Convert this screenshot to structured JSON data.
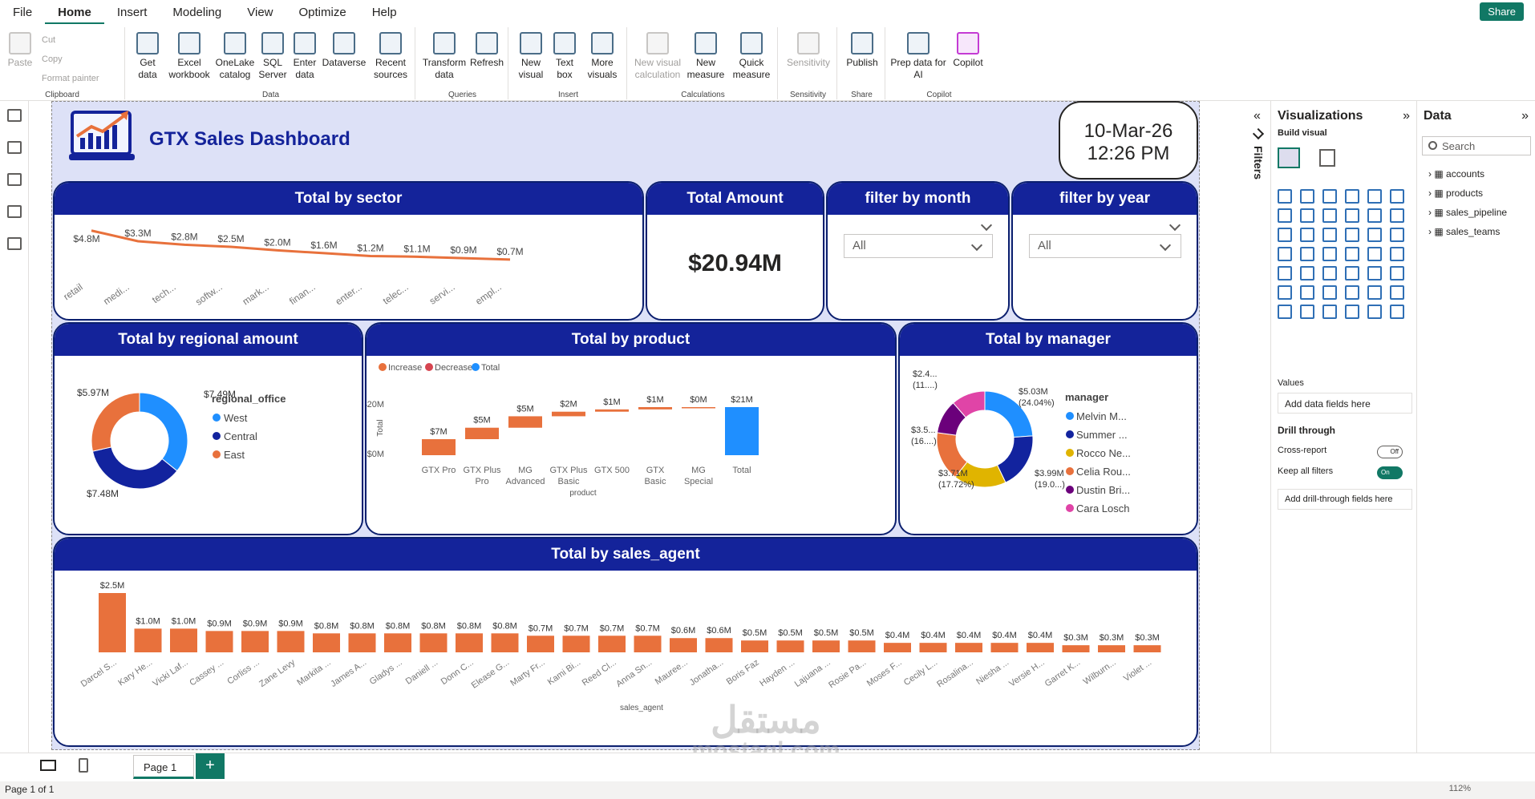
{
  "menu": [
    "File",
    "Home",
    "Insert",
    "Modeling",
    "View",
    "Optimize",
    "Help"
  ],
  "share": "Share",
  "ribbon": {
    "clipboard": {
      "paste": "Paste",
      "cut": "Cut",
      "copy": "Copy",
      "format_painter": "Format painter",
      "group": "Clipboard"
    },
    "data": {
      "get_data": "Get data",
      "excel": "Excel workbook",
      "onelake": "OneLake catalog",
      "sql": "SQL Server",
      "enter": "Enter data",
      "dataverse": "Dataverse",
      "recent": "Recent sources",
      "group": "Data"
    },
    "queries": {
      "transform": "Transform data",
      "refresh": "Refresh",
      "group": "Queries"
    },
    "insert": {
      "new_visual": "New visual",
      "text_box": "Text box",
      "more_visuals": "More visuals",
      "group": "Insert"
    },
    "calculations": {
      "new_visual_calc": "New visual calculation",
      "new_measure": "New measure",
      "quick_measure": "Quick measure",
      "group": "Calculations"
    },
    "sensitivity": {
      "label": "Sensitivity",
      "group": "Sensitivity"
    },
    "share": {
      "publish": "Publish",
      "group": "Share"
    },
    "copilot": {
      "prep": "Prep data for AI",
      "copilot": "Copilot",
      "group": "Copilot"
    }
  },
  "dashboard": {
    "title": "GTX Sales Dashboard",
    "date": "10-Mar-26",
    "time": "12:26 PM"
  },
  "cards": {
    "sector": "Total by sector",
    "amount": "Total Amount",
    "amount_value": "$20.94M",
    "month": "filter by month",
    "month_value": "All",
    "year": "filter by year",
    "year_value": "All",
    "regional": "Total by regional amount",
    "product": "Total by product",
    "manager": "Total by manager",
    "agent": "Total by sales_agent"
  },
  "chart_data": [
    {
      "type": "line",
      "title": "Total by sector",
      "categories": [
        "retail",
        "medi...",
        "tech...",
        "softw...",
        "mark...",
        "finan...",
        "enter...",
        "telec...",
        "servi...",
        "empl..."
      ],
      "values": [
        4.8,
        3.3,
        2.8,
        2.5,
        2.0,
        1.6,
        1.2,
        1.1,
        0.9,
        0.7
      ],
      "labels": [
        "$4.8M",
        "$3.3M",
        "$2.8M",
        "$2.5M",
        "$2.0M",
        "$1.6M",
        "$1.2M",
        "$1.1M",
        "$0.9M",
        "$0.7M"
      ],
      "color": "#e8713c"
    },
    {
      "type": "pie",
      "title": "Total by regional amount",
      "legend_title": "regional_office",
      "slices": [
        {
          "name": "West",
          "value": 7.49,
          "label": "$7.49M",
          "color": "#1f8fff"
        },
        {
          "name": "Central",
          "value": 7.48,
          "label": "$7.48M",
          "color": "#12239e"
        },
        {
          "name": "East",
          "value": 5.97,
          "label": "$5.97M",
          "color": "#e8713c"
        }
      ]
    },
    {
      "type": "bar",
      "title": "Total by product",
      "subtype": "waterfall",
      "legend": [
        {
          "name": "Increase",
          "color": "#e8713c"
        },
        {
          "name": "Decrease",
          "color": "#d64550"
        },
        {
          "name": "Total",
          "color": "#1f8fff"
        }
      ],
      "categories": [
        "GTX Pro",
        "GTX Plus Pro",
        "MG Advanced",
        "GTX Plus Basic",
        "GTX 500",
        "GTX Basic",
        "MG Special",
        "Total"
      ],
      "values": [
        7,
        5,
        5,
        2,
        1,
        1,
        0,
        21
      ],
      "labels": [
        "$7M",
        "$5M",
        "$5M",
        "$2M",
        "$1M",
        "$1M",
        "$0M",
        "$21M"
      ],
      "ylabel": "Total",
      "xlabel": "product",
      "yticks": [
        "$20M",
        "$0M"
      ]
    },
    {
      "type": "pie",
      "title": "Total by manager",
      "legend_title": "manager",
      "slices": [
        {
          "name": "Melvin M...",
          "value": 5.03,
          "label": "$5.03M",
          "pct": "(24.04%)",
          "color": "#1f8fff"
        },
        {
          "name": "Summer ...",
          "value": 3.99,
          "label": "$3.99M",
          "pct": "(19.0...)",
          "color": "#12239e"
        },
        {
          "name": "Rocco Ne...",
          "value": 3.71,
          "label": "$3.71M",
          "pct": "(17.72%)",
          "color": "#e0b400"
        },
        {
          "name": "Celia Rou...",
          "value": 3.5,
          "label": "$3.5...",
          "pct": "(16....)",
          "color": "#e8713c"
        },
        {
          "name": "Dustin Bri...",
          "value": 2.4,
          "label": "",
          "pct": "",
          "color": "#6b007b"
        },
        {
          "name": "Cara Losch",
          "value": 2.4,
          "label": "$2.4...",
          "pct": "(11....)",
          "color": "#e044a7"
        }
      ]
    },
    {
      "type": "bar",
      "title": "Total by sales_agent",
      "xlabel": "sales_agent",
      "categories": [
        "Darcel S...",
        "Kary He...",
        "Vicki Laf...",
        "Cassey ...",
        "Corliss ...",
        "Zane Levy",
        "Markita ...",
        "James A...",
        "Gladys ...",
        "Daniell ...",
        "Donn C...",
        "Elease G...",
        "Marty Fr...",
        "Kami Bi...",
        "Reed Cl...",
        "Anna Sn...",
        "Mauree...",
        "Jonatha...",
        "Boris Faz",
        "Hayden ...",
        "Lajuana ...",
        "Rosie Pa...",
        "Moses F...",
        "Cecily L...",
        "Rosalina...",
        "Niesha ...",
        "Versie H...",
        "Garret K...",
        "Wilburn...",
        "Violet ..."
      ],
      "values": [
        2.5,
        1.0,
        1.0,
        0.9,
        0.9,
        0.9,
        0.8,
        0.8,
        0.8,
        0.8,
        0.8,
        0.8,
        0.7,
        0.7,
        0.7,
        0.7,
        0.6,
        0.6,
        0.5,
        0.5,
        0.5,
        0.5,
        0.4,
        0.4,
        0.4,
        0.4,
        0.4,
        0.3,
        0.3,
        0.3
      ],
      "labels": [
        "$2.5M",
        "$1.0M",
        "$1.0M",
        "$0.9M",
        "$0.9M",
        "$0.9M",
        "$0.8M",
        "$0.8M",
        "$0.8M",
        "$0.8M",
        "$0.8M",
        "$0.8M",
        "$0.7M",
        "$0.7M",
        "$0.7M",
        "$0.7M",
        "$0.6M",
        "$0.6M",
        "$0.5M",
        "$0.5M",
        "$0.5M",
        "$0.5M",
        "$0.4M",
        "$0.4M",
        "$0.4M",
        "$0.4M",
        "$0.4M",
        "$0.3M",
        "$0.3M",
        "$0.3M"
      ],
      "color": "#e8713c"
    }
  ],
  "panes": {
    "filters": "Filters",
    "viz": "Visualizations",
    "build": "Build visual",
    "values": "Values",
    "add_fields": "Add data fields here",
    "drill": "Drill through",
    "cross": "Cross-report",
    "cross_state": "Off",
    "keep": "Keep all filters",
    "keep_state": "On",
    "add_drill": "Add drill-through fields here",
    "data": "Data",
    "search": "Search",
    "tables": [
      "accounts",
      "products",
      "sales_pipeline",
      "sales_teams"
    ]
  },
  "tabs": {
    "page": "Page 1",
    "add": "+"
  },
  "status": {
    "page": "Page 1 of 1",
    "zoom": "112%"
  },
  "watermark": {
    "arabic": "مستقل",
    "site": "mostaql.com"
  }
}
